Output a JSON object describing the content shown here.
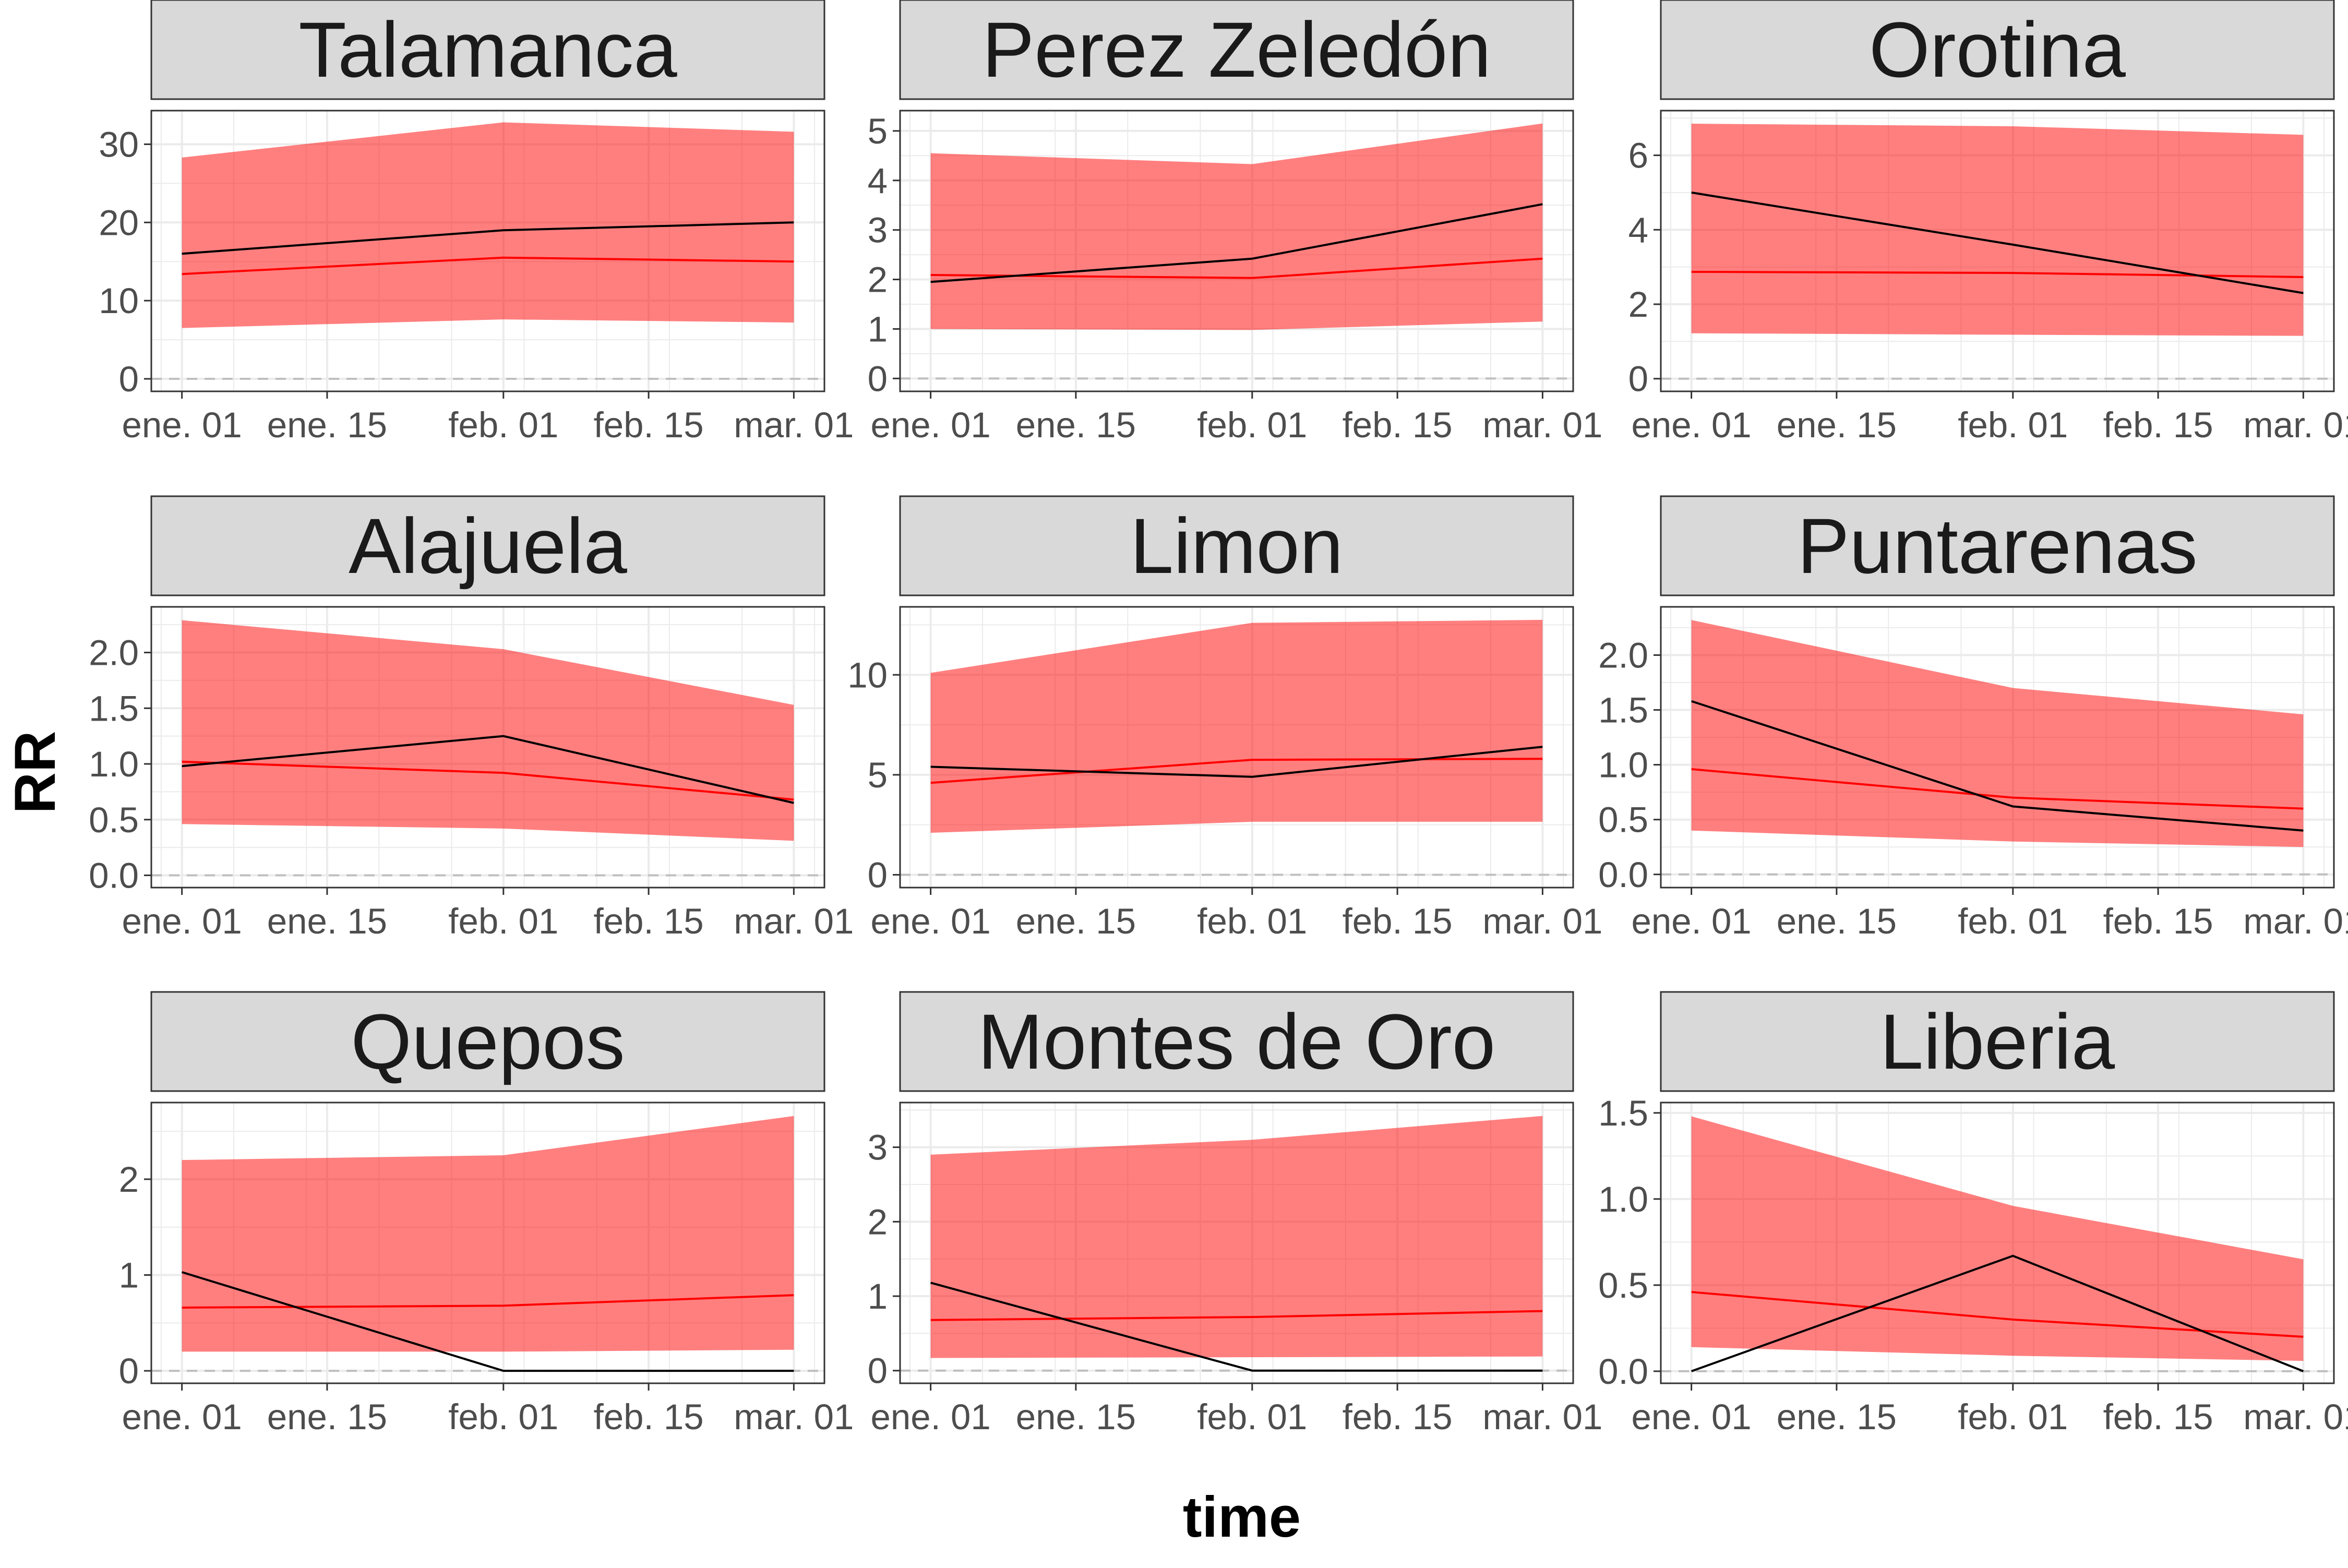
{
  "figure": {
    "xlabel": "time",
    "ylabel": "RR",
    "x_ticks": [
      "ene. 01",
      "ene. 15",
      "feb. 01",
      "feb. 15",
      "mar. 01"
    ],
    "colors": {
      "band": "#ff0000",
      "band_opacity": 0.5,
      "estimate": "#ff0000",
      "observed": "#000000",
      "strip_bg": "#d9d9d9",
      "grid": "#ebebeb",
      "reference_line": "#bfbfbf"
    }
  },
  "chart_data": [
    {
      "panel": "Talamanca",
      "type": "line",
      "x": [
        "2021-01-01",
        "2021-02-01",
        "2021-03-01"
      ],
      "observed": [
        16,
        19,
        20
      ],
      "estimate": [
        13.4,
        15.5,
        15
      ],
      "lower": [
        6.5,
        7.6,
        7.2
      ],
      "upper": [
        28.3,
        32.8,
        31.6
      ],
      "ylim": [
        -1.6,
        34.3
      ],
      "yticks": [
        0,
        10,
        20,
        30
      ],
      "ytick_labels": [
        "0",
        "10",
        "20",
        "30"
      ]
    },
    {
      "panel": "Perez Zeledón",
      "type": "line",
      "x": [
        "2021-01-01",
        "2021-02-01",
        "2021-03-01"
      ],
      "observed": [
        1.95,
        2.42,
        3.52
      ],
      "estimate": [
        2.09,
        2.03,
        2.42
      ],
      "lower": [
        1.0,
        0.98,
        1.15
      ],
      "upper": [
        4.55,
        4.33,
        5.15
      ],
      "ylim": [
        -0.26,
        5.41
      ],
      "yticks": [
        0,
        1,
        2,
        3,
        4,
        5
      ],
      "ytick_labels": [
        "0",
        "1",
        "2",
        "3",
        "4",
        "5"
      ]
    },
    {
      "panel": "Orotina",
      "type": "line",
      "x": [
        "2021-01-01",
        "2021-02-01",
        "2021-03-01"
      ],
      "observed": [
        5.0,
        3.6,
        2.3
      ],
      "estimate": [
        2.87,
        2.84,
        2.73
      ],
      "lower": [
        1.22,
        1.18,
        1.15
      ],
      "upper": [
        6.85,
        6.78,
        6.55
      ],
      "ylim": [
        -0.34,
        7.2
      ],
      "yticks": [
        0,
        2,
        4,
        6
      ],
      "ytick_labels": [
        "0",
        "2",
        "4",
        "6"
      ]
    },
    {
      "panel": "Alajuela",
      "type": "line",
      "x": [
        "2021-01-01",
        "2021-02-01",
        "2021-03-01"
      ],
      "observed": [
        0.98,
        1.25,
        0.65
      ],
      "estimate": [
        1.02,
        0.92,
        0.68
      ],
      "lower": [
        0.46,
        0.42,
        0.31
      ],
      "upper": [
        2.29,
        2.03,
        1.53
      ],
      "ylim": [
        -0.11,
        2.41
      ],
      "yticks": [
        0,
        0.5,
        1.0,
        1.5,
        2.0
      ],
      "ytick_labels": [
        "0.0",
        "0.5",
        "1.0",
        "1.5",
        "2.0"
      ]
    },
    {
      "panel": "Limon",
      "type": "line",
      "x": [
        "2021-01-01",
        "2021-02-01",
        "2021-03-01"
      ],
      "observed": [
        5.4,
        4.9,
        6.4
      ],
      "estimate": [
        4.6,
        5.75,
        5.8
      ],
      "lower": [
        2.1,
        2.65,
        2.65
      ],
      "upper": [
        10.1,
        12.6,
        12.75
      ],
      "ylim": [
        -0.64,
        13.4
      ],
      "yticks": [
        0,
        5,
        10
      ],
      "ytick_labels": [
        "0",
        "5",
        "10"
      ]
    },
    {
      "panel": "Puntarenas",
      "type": "line",
      "x": [
        "2021-01-01",
        "2021-02-01",
        "2021-03-01"
      ],
      "observed": [
        1.58,
        0.62,
        0.4
      ],
      "estimate": [
        0.96,
        0.7,
        0.6
      ],
      "lower": [
        0.4,
        0.3,
        0.25
      ],
      "upper": [
        2.32,
        1.7,
        1.46
      ],
      "ylim": [
        -0.12,
        2.44
      ],
      "yticks": [
        0,
        0.5,
        1.0,
        1.5,
        2.0
      ],
      "ytick_labels": [
        "0.0",
        "0.5",
        "1.0",
        "1.5",
        "2.0"
      ]
    },
    {
      "panel": "Quepos",
      "type": "line",
      "x": [
        "2021-01-01",
        "2021-02-01",
        "2021-03-01"
      ],
      "observed": [
        1.03,
        0,
        0
      ],
      "estimate": [
        0.66,
        0.68,
        0.79
      ],
      "lower": [
        0.2,
        0.2,
        0.22
      ],
      "upper": [
        2.2,
        2.25,
        2.66
      ],
      "ylim": [
        -0.13,
        2.8
      ],
      "yticks": [
        0,
        1,
        2
      ],
      "ytick_labels": [
        "0",
        "1",
        "2"
      ]
    },
    {
      "panel": "Montes de Oro",
      "type": "line",
      "x": [
        "2021-01-01",
        "2021-02-01",
        "2021-03-01"
      ],
      "observed": [
        1.18,
        0,
        0
      ],
      "estimate": [
        0.68,
        0.72,
        0.8
      ],
      "lower": [
        0.17,
        0.18,
        0.19
      ],
      "upper": [
        2.9,
        3.1,
        3.42
      ],
      "ylim": [
        -0.17,
        3.6
      ],
      "yticks": [
        0,
        1,
        2,
        3
      ],
      "ytick_labels": [
        "0",
        "1",
        "2",
        "3"
      ]
    },
    {
      "panel": "Liberia",
      "type": "line",
      "x": [
        "2021-01-01",
        "2021-02-01",
        "2021-03-01"
      ],
      "observed": [
        0,
        0.67,
        0
      ],
      "estimate": [
        0.46,
        0.3,
        0.2
      ],
      "lower": [
        0.14,
        0.09,
        0.06
      ],
      "upper": [
        1.48,
        0.96,
        0.65
      ],
      "ylim": [
        -0.07,
        1.56
      ],
      "yticks": [
        0,
        0.5,
        1.0,
        1.5
      ],
      "ytick_labels": [
        "0.0",
        "0.5",
        "1.0",
        "1.5"
      ]
    }
  ]
}
